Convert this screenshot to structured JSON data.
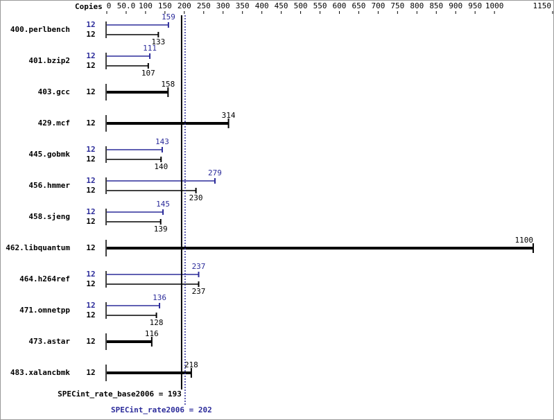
{
  "chart_data": {
    "type": "spec-bar",
    "x_label": "Copies",
    "xlim": [
      0,
      1150
    ],
    "xticks": [
      0,
      {
        "value": 50,
        "label": "50.0"
      },
      100,
      150,
      200,
      250,
      300,
      350,
      400,
      450,
      500,
      550,
      600,
      650,
      700,
      750,
      800,
      850,
      900,
      950,
      1000,
      1150
    ],
    "peak_color": "#2b2b9a",
    "base_color": "#000000",
    "benchmarks": [
      {
        "name": "400.perlbench",
        "bars": [
          {
            "kind": "peak",
            "copies": 12,
            "value": 159
          },
          {
            "kind": "base",
            "copies": 12,
            "value": 133
          }
        ]
      },
      {
        "name": "401.bzip2",
        "bars": [
          {
            "kind": "peak",
            "copies": 12,
            "value": 111
          },
          {
            "kind": "base",
            "copies": 12,
            "value": 107
          }
        ]
      },
      {
        "name": "403.gcc",
        "bars": [
          {
            "kind": "base",
            "copies": 12,
            "value": 158
          }
        ]
      },
      {
        "name": "429.mcf",
        "bars": [
          {
            "kind": "base",
            "copies": 12,
            "value": 314
          }
        ]
      },
      {
        "name": "445.gobmk",
        "bars": [
          {
            "kind": "peak",
            "copies": 12,
            "value": 143
          },
          {
            "kind": "base",
            "copies": 12,
            "value": 140
          }
        ]
      },
      {
        "name": "456.hmmer",
        "bars": [
          {
            "kind": "peak",
            "copies": 12,
            "value": 279
          },
          {
            "kind": "base",
            "copies": 12,
            "value": 230
          }
        ]
      },
      {
        "name": "458.sjeng",
        "bars": [
          {
            "kind": "peak",
            "copies": 12,
            "value": 145
          },
          {
            "kind": "base",
            "copies": 12,
            "value": 139
          }
        ]
      },
      {
        "name": "462.libquantum",
        "bars": [
          {
            "kind": "base",
            "copies": 12,
            "value": 1100
          }
        ]
      },
      {
        "name": "464.h264ref",
        "bars": [
          {
            "kind": "peak",
            "copies": 12,
            "value": 237
          },
          {
            "kind": "base",
            "copies": 12,
            "value": 237
          }
        ]
      },
      {
        "name": "471.omnetpp",
        "bars": [
          {
            "kind": "peak",
            "copies": 12,
            "value": 136
          },
          {
            "kind": "base",
            "copies": 12,
            "value": 128
          }
        ]
      },
      {
        "name": "473.astar",
        "bars": [
          {
            "kind": "base",
            "copies": 12,
            "value": 116
          }
        ]
      },
      {
        "name": "483.xalancbmk",
        "bars": [
          {
            "kind": "base",
            "copies": 12,
            "value": 218
          }
        ]
      }
    ],
    "base_line": {
      "label": "SPECint_rate_base2006 = 193",
      "value": 193
    },
    "peak_line": {
      "label": "SPECint_rate2006 = 202",
      "value": 202
    }
  }
}
